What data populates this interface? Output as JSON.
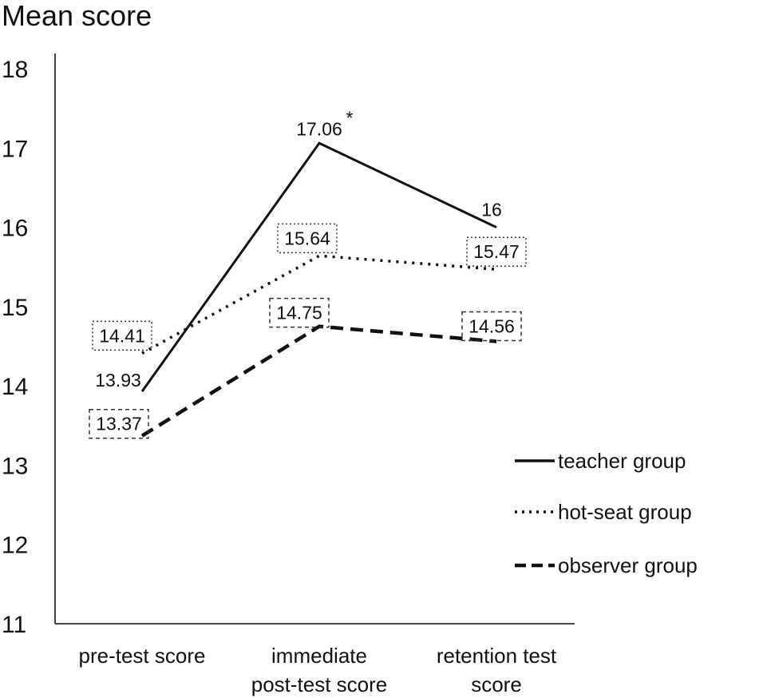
{
  "chart_data": {
    "type": "line",
    "title": "",
    "ylabel": "Mean score",
    "xlabel": "",
    "ylim": [
      11,
      18
    ],
    "yticks": [
      11,
      12,
      13,
      14,
      15,
      16,
      17,
      18
    ],
    "categories": [
      [
        "pre-test score"
      ],
      [
        "immediate",
        "post-test score"
      ],
      [
        "retention test",
        "score"
      ]
    ],
    "series": [
      {
        "name": "teacher group",
        "style": "solid",
        "color": "#111111",
        "values": [
          13.93,
          17.06,
          16
        ],
        "labels": [
          "13.93",
          "17.06",
          "16"
        ],
        "boxed": false,
        "annotation": {
          "index": 1,
          "text": "*"
        }
      },
      {
        "name": "hot-seat group",
        "style": "dotted",
        "color": "#111111",
        "values": [
          14.41,
          15.64,
          15.47
        ],
        "labels": [
          "14.41",
          "15.64",
          "15.47"
        ],
        "boxed": true,
        "box_style": "dotted"
      },
      {
        "name": "observer group",
        "style": "dashed",
        "color": "#111111",
        "values": [
          13.37,
          14.75,
          14.56
        ],
        "labels": [
          "13.37",
          "14.75",
          "14.56"
        ],
        "boxed": true,
        "box_style": "dashed"
      }
    ],
    "grid": false,
    "legend": "right"
  }
}
